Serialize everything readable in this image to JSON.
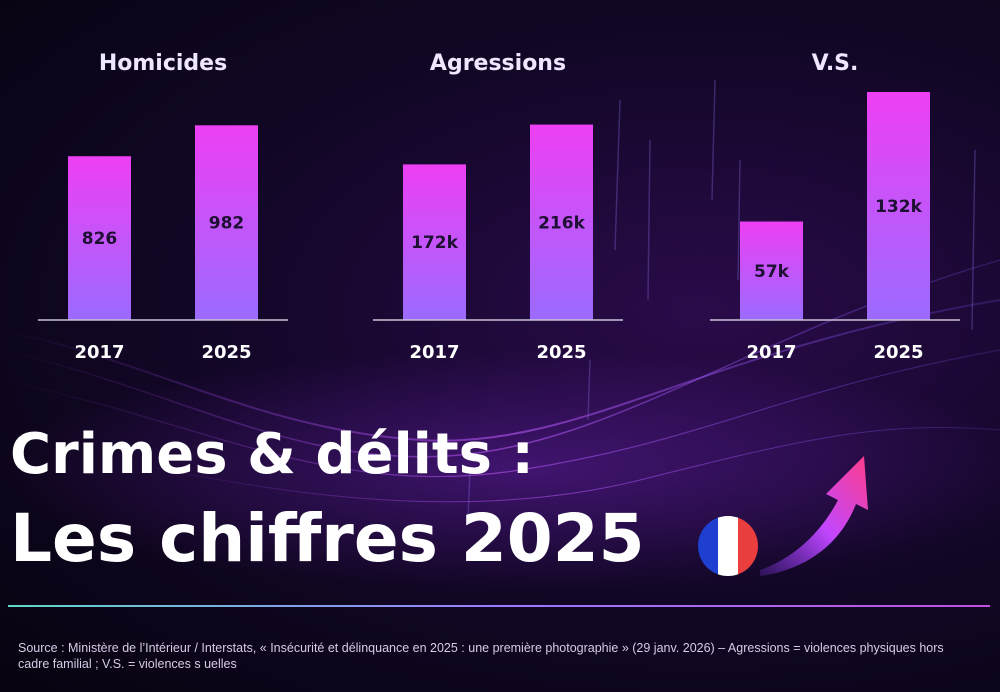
{
  "colors": {
    "bar_top": "#ee3ff4",
    "bar_bottom": "#9b6bff",
    "baseline": "#c9c2d6"
  },
  "icons": {
    "flag": "france-flag-icon",
    "trend": "trend-up-arrow-icon"
  },
  "chart_data": [
    {
      "type": "bar",
      "title": "Homicides",
      "categories": [
        "2017",
        "2025"
      ],
      "values": [
        826,
        982
      ],
      "labels": [
        "826",
        "982"
      ]
    },
    {
      "type": "bar",
      "title": "Agressions",
      "categories": [
        "2017",
        "2025"
      ],
      "values": [
        172000,
        216000
      ],
      "labels": [
        "172k",
        "216k"
      ]
    },
    {
      "type": "bar",
      "title": "V.S.",
      "categories": [
        "2017",
        "2025"
      ],
      "values": [
        57000,
        132000
      ],
      "labels": [
        "57k",
        "132k"
      ]
    }
  ],
  "headline": {
    "line1": "Crimes & délits :",
    "line2": "Les chiffres 2025"
  },
  "source": "Source : Ministère de l’Intérieur / Interstats, « Insécurité et délinquance en 2025 : une première photographie » (29 janv. 2026) – Agressions = violences physiques hors cadre familial ; V.S. = violences s uelles"
}
